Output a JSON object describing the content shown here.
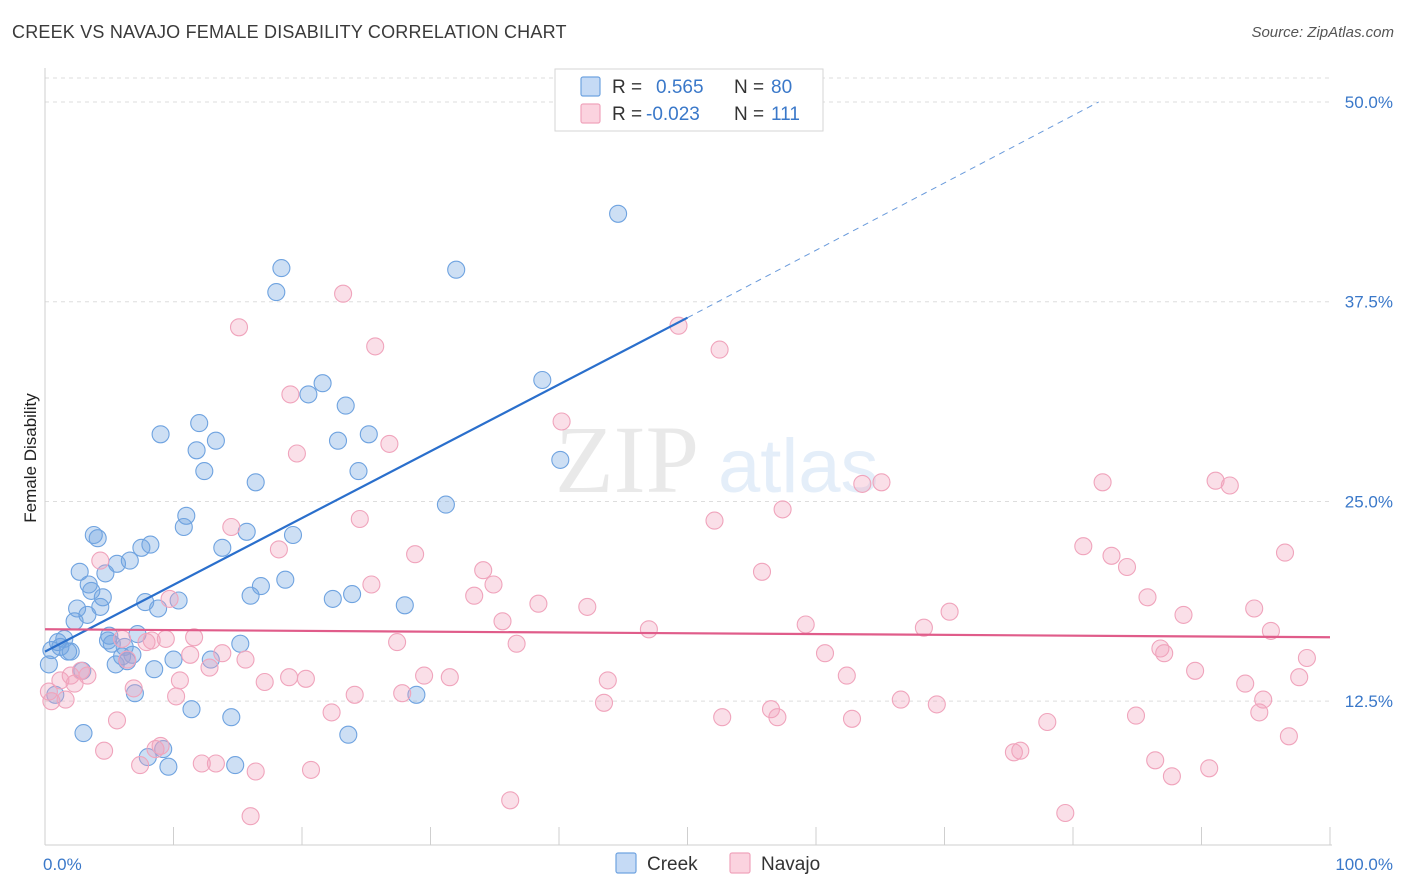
{
  "header": {
    "title": "CREEK VS NAVAJO FEMALE DISABILITY CORRELATION CHART",
    "source": "Source: ZipAtlas.com"
  },
  "watermark": {
    "zip": "ZIP",
    "atlas": "atlas"
  },
  "legend": {
    "rows": [
      {
        "r_label": "R =",
        "r_value": "0.565",
        "n_label": "N =",
        "n_value": "80"
      },
      {
        "r_label": "R =",
        "r_value": "-0.023",
        "n_label": "N =",
        "n_value": "111"
      }
    ]
  },
  "bottom_legend": {
    "items": [
      "Creek",
      "Navajo"
    ]
  },
  "chart_data": {
    "type": "scatter",
    "ylabel": "Female Disability",
    "xlim": [
      0,
      100
    ],
    "ylim": [
      3.5,
      52.0
    ],
    "x_tick_labels": [
      {
        "value": 0,
        "label": "0.0%"
      },
      {
        "value": 100,
        "label": "100.0%"
      }
    ],
    "y_ticks": [
      {
        "value": 12.5,
        "label": "12.5%"
      },
      {
        "value": 25.0,
        "label": "25.0%"
      },
      {
        "value": 37.5,
        "label": "37.5%"
      },
      {
        "value": 50.0,
        "label": "50.0%"
      }
    ],
    "grid": "horizontal-dashed",
    "legend_placement": "top-center",
    "colors": {
      "creek": "#6fa3e0",
      "navajo": "#f0a4bc",
      "creek_line": "#2a6fcc",
      "navajo_line": "#e05c8a",
      "tick": "#3a78c9"
    },
    "series": [
      {
        "name": "Creek",
        "r": 0.565,
        "n": 80,
        "trend": {
          "x": [
            0,
            50
          ],
          "y": [
            15.6,
            36.5
          ],
          "dashed_to": [
            82,
            50
          ]
        },
        "points": [
          [
            0.5,
            15.7
          ],
          [
            1.0,
            16.2
          ],
          [
            1.5,
            16.4
          ],
          [
            2.0,
            15.6
          ],
          [
            1.2,
            15.9
          ],
          [
            2.3,
            17.5
          ],
          [
            2.5,
            18.3
          ],
          [
            2.7,
            20.6
          ],
          [
            2.9,
            14.4
          ],
          [
            3.3,
            17.9
          ],
          [
            3.4,
            19.8
          ],
          [
            3.6,
            19.4
          ],
          [
            3.8,
            22.9
          ],
          [
            4.1,
            22.7
          ],
          [
            4.3,
            18.4
          ],
          [
            4.5,
            19.0
          ],
          [
            4.7,
            20.5
          ],
          [
            5.0,
            16.6
          ],
          [
            5.2,
            16.1
          ],
          [
            5.6,
            21.1
          ],
          [
            6.0,
            15.3
          ],
          [
            6.2,
            15.9
          ],
          [
            6.6,
            21.3
          ],
          [
            6.8,
            15.4
          ],
          [
            7.0,
            13.0
          ],
          [
            7.5,
            22.1
          ],
          [
            7.8,
            18.7
          ],
          [
            8.2,
            22.3
          ],
          [
            8.5,
            14.5
          ],
          [
            8.8,
            18.3
          ],
          [
            9.2,
            9.5
          ],
          [
            9.6,
            8.4
          ],
          [
            10.0,
            15.1
          ],
          [
            10.4,
            18.8
          ],
          [
            10.8,
            23.4
          ],
          [
            11.0,
            24.1
          ],
          [
            11.4,
            12.0
          ],
          [
            11.8,
            28.2
          ],
          [
            12.4,
            26.9
          ],
          [
            12.9,
            15.1
          ],
          [
            13.3,
            28.8
          ],
          [
            13.8,
            22.1
          ],
          [
            14.5,
            11.5
          ],
          [
            14.8,
            8.5
          ],
          [
            15.2,
            16.1
          ],
          [
            15.7,
            23.1
          ],
          [
            16.0,
            19.1
          ],
          [
            16.4,
            26.2
          ],
          [
            16.8,
            19.7
          ],
          [
            18.0,
            38.1
          ],
          [
            18.4,
            39.6
          ],
          [
            18.7,
            20.1
          ],
          [
            19.3,
            22.9
          ],
          [
            20.5,
            31.7
          ],
          [
            21.6,
            32.4
          ],
          [
            22.4,
            18.9
          ],
          [
            22.8,
            28.8
          ],
          [
            23.4,
            31.0
          ],
          [
            23.6,
            10.4
          ],
          [
            23.9,
            19.2
          ],
          [
            24.4,
            26.9
          ],
          [
            25.2,
            29.2
          ],
          [
            28.0,
            18.5
          ],
          [
            28.9,
            12.9
          ],
          [
            31.2,
            24.8
          ],
          [
            32.0,
            39.5
          ],
          [
            38.7,
            32.6
          ],
          [
            40.1,
            27.6
          ],
          [
            44.6,
            43.0
          ],
          [
            0.3,
            14.8
          ],
          [
            1.8,
            15.6
          ],
          [
            3.0,
            10.5
          ],
          [
            5.5,
            14.8
          ],
          [
            6.4,
            15.0
          ],
          [
            8.0,
            9.0
          ],
          [
            12.0,
            29.9
          ],
          [
            9.0,
            29.2
          ],
          [
            0.8,
            12.9
          ],
          [
            4.9,
            16.3
          ],
          [
            7.2,
            16.7
          ]
        ]
      },
      {
        "name": "Navajo",
        "r": -0.023,
        "n": 111,
        "trend": {
          "x": [
            0,
            100
          ],
          "y": [
            17.0,
            16.5
          ]
        },
        "points": [
          [
            0.3,
            13.1
          ],
          [
            0.5,
            12.5
          ],
          [
            1.2,
            13.8
          ],
          [
            1.6,
            12.6
          ],
          [
            2.0,
            14.1
          ],
          [
            2.3,
            13.6
          ],
          [
            2.8,
            14.4
          ],
          [
            3.3,
            14.1
          ],
          [
            4.3,
            21.3
          ],
          [
            4.6,
            9.4
          ],
          [
            5.6,
            11.3
          ],
          [
            6.0,
            16.4
          ],
          [
            6.4,
            15.1
          ],
          [
            6.9,
            13.3
          ],
          [
            7.4,
            8.5
          ],
          [
            7.9,
            16.2
          ],
          [
            8.3,
            16.3
          ],
          [
            8.6,
            9.5
          ],
          [
            9.0,
            9.7
          ],
          [
            9.4,
            16.4
          ],
          [
            9.7,
            18.9
          ],
          [
            10.2,
            12.8
          ],
          [
            10.5,
            13.8
          ],
          [
            11.3,
            15.4
          ],
          [
            11.6,
            16.5
          ],
          [
            12.2,
            8.6
          ],
          [
            12.8,
            14.6
          ],
          [
            13.3,
            8.6
          ],
          [
            13.8,
            15.5
          ],
          [
            14.5,
            23.4
          ],
          [
            15.1,
            35.9
          ],
          [
            15.6,
            15.1
          ],
          [
            16.0,
            5.3
          ],
          [
            16.4,
            8.1
          ],
          [
            17.1,
            13.7
          ],
          [
            18.2,
            22.0
          ],
          [
            19.0,
            14.0
          ],
          [
            19.1,
            31.7
          ],
          [
            19.6,
            28.0
          ],
          [
            20.3,
            13.9
          ],
          [
            20.7,
            8.2
          ],
          [
            22.3,
            11.8
          ],
          [
            23.2,
            38.0
          ],
          [
            24.1,
            12.9
          ],
          [
            24.5,
            23.9
          ],
          [
            25.4,
            19.8
          ],
          [
            25.7,
            34.7
          ],
          [
            26.8,
            28.6
          ],
          [
            27.4,
            16.2
          ],
          [
            27.8,
            13.0
          ],
          [
            28.8,
            21.7
          ],
          [
            29.5,
            14.1
          ],
          [
            31.5,
            14.0
          ],
          [
            33.4,
            19.1
          ],
          [
            34.1,
            20.7
          ],
          [
            34.9,
            19.8
          ],
          [
            35.6,
            17.5
          ],
          [
            36.2,
            6.3
          ],
          [
            36.7,
            16.1
          ],
          [
            38.4,
            18.6
          ],
          [
            40.2,
            30.0
          ],
          [
            42.2,
            18.4
          ],
          [
            43.5,
            12.4
          ],
          [
            43.8,
            13.8
          ],
          [
            47.0,
            17.0
          ],
          [
            49.3,
            36.0
          ],
          [
            52.7,
            11.5
          ],
          [
            55.8,
            20.6
          ],
          [
            56.5,
            12.0
          ],
          [
            57.0,
            11.5
          ],
          [
            57.4,
            24.5
          ],
          [
            59.2,
            17.3
          ],
          [
            60.7,
            15.5
          ],
          [
            62.4,
            14.1
          ],
          [
            62.8,
            11.4
          ],
          [
            63.6,
            26.1
          ],
          [
            65.1,
            26.2
          ],
          [
            66.6,
            12.6
          ],
          [
            68.4,
            17.1
          ],
          [
            69.4,
            12.3
          ],
          [
            70.4,
            18.1
          ],
          [
            75.4,
            9.3
          ],
          [
            75.9,
            9.4
          ],
          [
            78.0,
            11.2
          ],
          [
            79.4,
            5.5
          ],
          [
            80.8,
            22.2
          ],
          [
            82.3,
            26.2
          ],
          [
            83.0,
            21.6
          ],
          [
            84.2,
            20.9
          ],
          [
            84.9,
            11.6
          ],
          [
            85.8,
            19.0
          ],
          [
            86.4,
            8.8
          ],
          [
            86.8,
            15.8
          ],
          [
            87.1,
            15.5
          ],
          [
            87.7,
            7.8
          ],
          [
            88.6,
            17.9
          ],
          [
            89.5,
            14.4
          ],
          [
            90.6,
            8.3
          ],
          [
            91.1,
            26.3
          ],
          [
            92.2,
            26.0
          ],
          [
            93.4,
            13.6
          ],
          [
            94.1,
            18.3
          ],
          [
            94.5,
            11.8
          ],
          [
            94.8,
            12.6
          ],
          [
            95.4,
            16.9
          ],
          [
            96.5,
            21.8
          ],
          [
            96.8,
            10.3
          ],
          [
            97.6,
            14.0
          ],
          [
            98.2,
            15.2
          ],
          [
            52.1,
            23.8
          ],
          [
            52.5,
            34.5
          ]
        ]
      }
    ]
  }
}
